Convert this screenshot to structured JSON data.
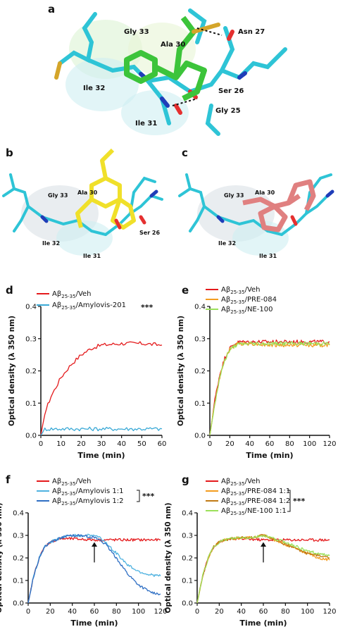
{
  "panel_labels": {
    "a": "a",
    "b": "b",
    "c": "c",
    "d": "d",
    "e": "e",
    "f": "f",
    "g": "g"
  },
  "molecular_panels": {
    "a": {
      "residues": [
        "Gly 33",
        "Ala 30",
        "Asn 27",
        "Ile 32",
        "Ser 26",
        "Ile 31",
        "Gly 25"
      ]
    },
    "b": {
      "residues": [
        "Gly 33",
        "Ala 30",
        "Ser 26",
        "Ile 32",
        "Ile 31"
      ]
    },
    "c": {
      "residues": [
        "Gly 33",
        "Ala 30",
        "Ile 32",
        "Ile 31"
      ]
    }
  },
  "colors": {
    "veh": "#e41a1c",
    "amylovis201": "#3aa9d6",
    "amylovis_1_1": "#4fb2e0",
    "amylovis_1_2": "#2f6fc4",
    "pre084": "#f39c1f",
    "pre084_1_2": "#c07a14",
    "ne100": "#9be05a",
    "carbon_cyan": "#2ec4d6"
  },
  "chart_data": [
    {
      "panel": "d",
      "type": "line",
      "xlabel": "Time (min)",
      "ylabel": "Optical density (λ 350 nm)",
      "xlim": [
        0,
        60
      ],
      "ylim": [
        0,
        0.4
      ],
      "xticks": [
        0,
        10,
        20,
        30,
        40,
        50,
        60
      ],
      "yticks": [
        0.0,
        0.1,
        0.2,
        0.3,
        0.4
      ],
      "significance": "***",
      "series": [
        {
          "name": "Aβ25-35/Veh",
          "label_main": "Aβ",
          "label_sub": "25-35",
          "label_rest": "/Veh",
          "color_key": "veh",
          "x": [
            0,
            2,
            5,
            10,
            15,
            20,
            25,
            30,
            40,
            50,
            60
          ],
          "y": [
            0.0,
            0.07,
            0.12,
            0.18,
            0.22,
            0.25,
            0.27,
            0.28,
            0.285,
            0.285,
            0.28
          ]
        },
        {
          "name": "Aβ25-35/Amylovis-201",
          "label_main": "Aβ",
          "label_sub": "25-35",
          "label_rest": "/Amylovis-201",
          "color_key": "amylovis201",
          "x": [
            0,
            2,
            10,
            20,
            30,
            40,
            50,
            60
          ],
          "y": [
            0.0,
            0.02,
            0.02,
            0.02,
            0.02,
            0.02,
            0.02,
            0.02
          ]
        }
      ]
    },
    {
      "panel": "e",
      "type": "line",
      "xlabel": "Time (min)",
      "ylabel": "Optical density (λ 350 nm)",
      "xlim": [
        0,
        120
      ],
      "ylim": [
        0,
        0.4
      ],
      "xticks": [
        0,
        20,
        40,
        60,
        80,
        100,
        120
      ],
      "yticks": [
        0.0,
        0.1,
        0.2,
        0.3,
        0.4
      ],
      "series": [
        {
          "name": "Aβ25-35/Veh",
          "label_main": "Aβ",
          "label_sub": "25-35",
          "label_rest": "/Veh",
          "color_key": "veh",
          "x": [
            0,
            5,
            10,
            15,
            20,
            25,
            30,
            40,
            60,
            80,
            100,
            120
          ],
          "y": [
            0.0,
            0.11,
            0.19,
            0.24,
            0.27,
            0.285,
            0.29,
            0.29,
            0.29,
            0.29,
            0.29,
            0.29
          ]
        },
        {
          "name": "Aβ25-35/PRE-084",
          "label_main": "Aβ",
          "label_sub": "25-35",
          "label_rest": "/PRE-084",
          "color_key": "pre084",
          "x": [
            0,
            5,
            10,
            15,
            20,
            25,
            30,
            40,
            60,
            80,
            100,
            120
          ],
          "y": [
            0.0,
            0.1,
            0.18,
            0.235,
            0.265,
            0.28,
            0.285,
            0.285,
            0.28,
            0.28,
            0.28,
            0.28
          ]
        },
        {
          "name": "Aβ25-35/NE-100",
          "label_main": "Aβ",
          "label_sub": "25-35",
          "label_rest": "/NE-100",
          "color_key": "ne100",
          "x": [
            0,
            5,
            10,
            15,
            20,
            25,
            30,
            40,
            60,
            80,
            100,
            120
          ],
          "y": [
            0.0,
            0.1,
            0.18,
            0.235,
            0.265,
            0.278,
            0.283,
            0.285,
            0.285,
            0.285,
            0.285,
            0.285
          ]
        }
      ]
    },
    {
      "panel": "f",
      "type": "line",
      "xlabel": "Time (min)",
      "ylabel": "Optical density (λ 350 nm)",
      "xlim": [
        0,
        120
      ],
      "ylim": [
        0,
        0.4
      ],
      "xticks": [
        0,
        20,
        40,
        60,
        80,
        100,
        120
      ],
      "yticks": [
        0.0,
        0.1,
        0.2,
        0.3,
        0.4
      ],
      "significance": "***",
      "arrow_at_x": 60,
      "series": [
        {
          "name": "Aβ25-35/Veh",
          "label_main": "Aβ",
          "label_sub": "25-35",
          "label_rest": "/Veh",
          "color_key": "veh",
          "x": [
            0,
            5,
            10,
            15,
            20,
            25,
            30,
            40,
            60,
            80,
            100,
            120
          ],
          "y": [
            0.0,
            0.12,
            0.2,
            0.25,
            0.27,
            0.28,
            0.285,
            0.285,
            0.28,
            0.28,
            0.28,
            0.28
          ]
        },
        {
          "name": "Aβ25-35/Amylovis 1:1",
          "label_main": "Aβ",
          "label_sub": "25-35",
          "label_rest": "/Amylovis 1:1",
          "color_key": "amylovis_1_1",
          "x": [
            0,
            5,
            10,
            15,
            20,
            25,
            30,
            40,
            50,
            60,
            65,
            70,
            80,
            90,
            100,
            110,
            120
          ],
          "y": [
            0.0,
            0.12,
            0.2,
            0.25,
            0.27,
            0.28,
            0.29,
            0.3,
            0.3,
            0.3,
            0.29,
            0.27,
            0.22,
            0.17,
            0.14,
            0.125,
            0.12
          ]
        },
        {
          "name": "Aβ25-35/Amylovis 1:2",
          "label_main": "Aβ",
          "label_sub": "25-35",
          "label_rest": "/Amylovis 1:2",
          "color_key": "amylovis_1_2",
          "x": [
            0,
            5,
            10,
            15,
            20,
            25,
            30,
            40,
            50,
            60,
            65,
            70,
            80,
            90,
            100,
            110,
            120
          ],
          "y": [
            0.0,
            0.12,
            0.2,
            0.25,
            0.27,
            0.28,
            0.29,
            0.3,
            0.3,
            0.29,
            0.28,
            0.26,
            0.2,
            0.13,
            0.08,
            0.05,
            0.04
          ]
        }
      ]
    },
    {
      "panel": "g",
      "type": "line",
      "xlabel": "Time (min)",
      "ylabel": "Optical density (λ 350 nm)",
      "xlim": [
        0,
        120
      ],
      "ylim": [
        0,
        0.4
      ],
      "xticks": [
        0,
        20,
        40,
        60,
        80,
        100,
        120
      ],
      "yticks": [
        0.0,
        0.1,
        0.2,
        0.3,
        0.4
      ],
      "significance": "***",
      "arrow_at_x": 60,
      "series": [
        {
          "name": "Aβ25-35/Veh",
          "label_main": "Aβ",
          "label_sub": "25-35",
          "label_rest": "/Veh",
          "color_key": "veh",
          "x": [
            0,
            5,
            10,
            15,
            20,
            25,
            30,
            40,
            60,
            80,
            100,
            120
          ],
          "y": [
            0.0,
            0.12,
            0.2,
            0.25,
            0.27,
            0.28,
            0.285,
            0.285,
            0.28,
            0.28,
            0.28,
            0.28
          ]
        },
        {
          "name": "Aβ25-35/PRE-084 1:1",
          "label_main": "Aβ",
          "label_sub": "25-35",
          "label_rest": "/PRE-084 1:1",
          "color_key": "pre084",
          "x": [
            0,
            5,
            10,
            15,
            20,
            25,
            30,
            40,
            50,
            60,
            70,
            80,
            90,
            100,
            110,
            120
          ],
          "y": [
            0.0,
            0.12,
            0.2,
            0.25,
            0.27,
            0.28,
            0.285,
            0.29,
            0.29,
            0.3,
            0.28,
            0.26,
            0.24,
            0.22,
            0.2,
            0.19
          ]
        },
        {
          "name": "Aβ25-35/PRE-084 1:2",
          "label_main": "Aβ",
          "label_sub": "25-35",
          "label_rest": "/PRE-084 1:2",
          "color_key": "pre084_1_2",
          "x": [
            0,
            5,
            10,
            15,
            20,
            25,
            30,
            40,
            50,
            60,
            70,
            80,
            90,
            100,
            110,
            120
          ],
          "y": [
            0.0,
            0.12,
            0.2,
            0.25,
            0.27,
            0.28,
            0.285,
            0.29,
            0.29,
            0.3,
            0.28,
            0.26,
            0.24,
            0.22,
            0.21,
            0.2
          ]
        },
        {
          "name": "Aβ25-35/NE-100 1:1",
          "label_main": "Aβ",
          "label_sub": "25-35",
          "label_rest": "/NE-100 1:1",
          "color_key": "ne100",
          "x": [
            0,
            5,
            10,
            15,
            20,
            25,
            30,
            40,
            50,
            60,
            70,
            80,
            90,
            100,
            110,
            120
          ],
          "y": [
            0.0,
            0.12,
            0.2,
            0.25,
            0.27,
            0.28,
            0.285,
            0.29,
            0.29,
            0.3,
            0.285,
            0.27,
            0.25,
            0.23,
            0.22,
            0.21
          ]
        }
      ]
    }
  ]
}
